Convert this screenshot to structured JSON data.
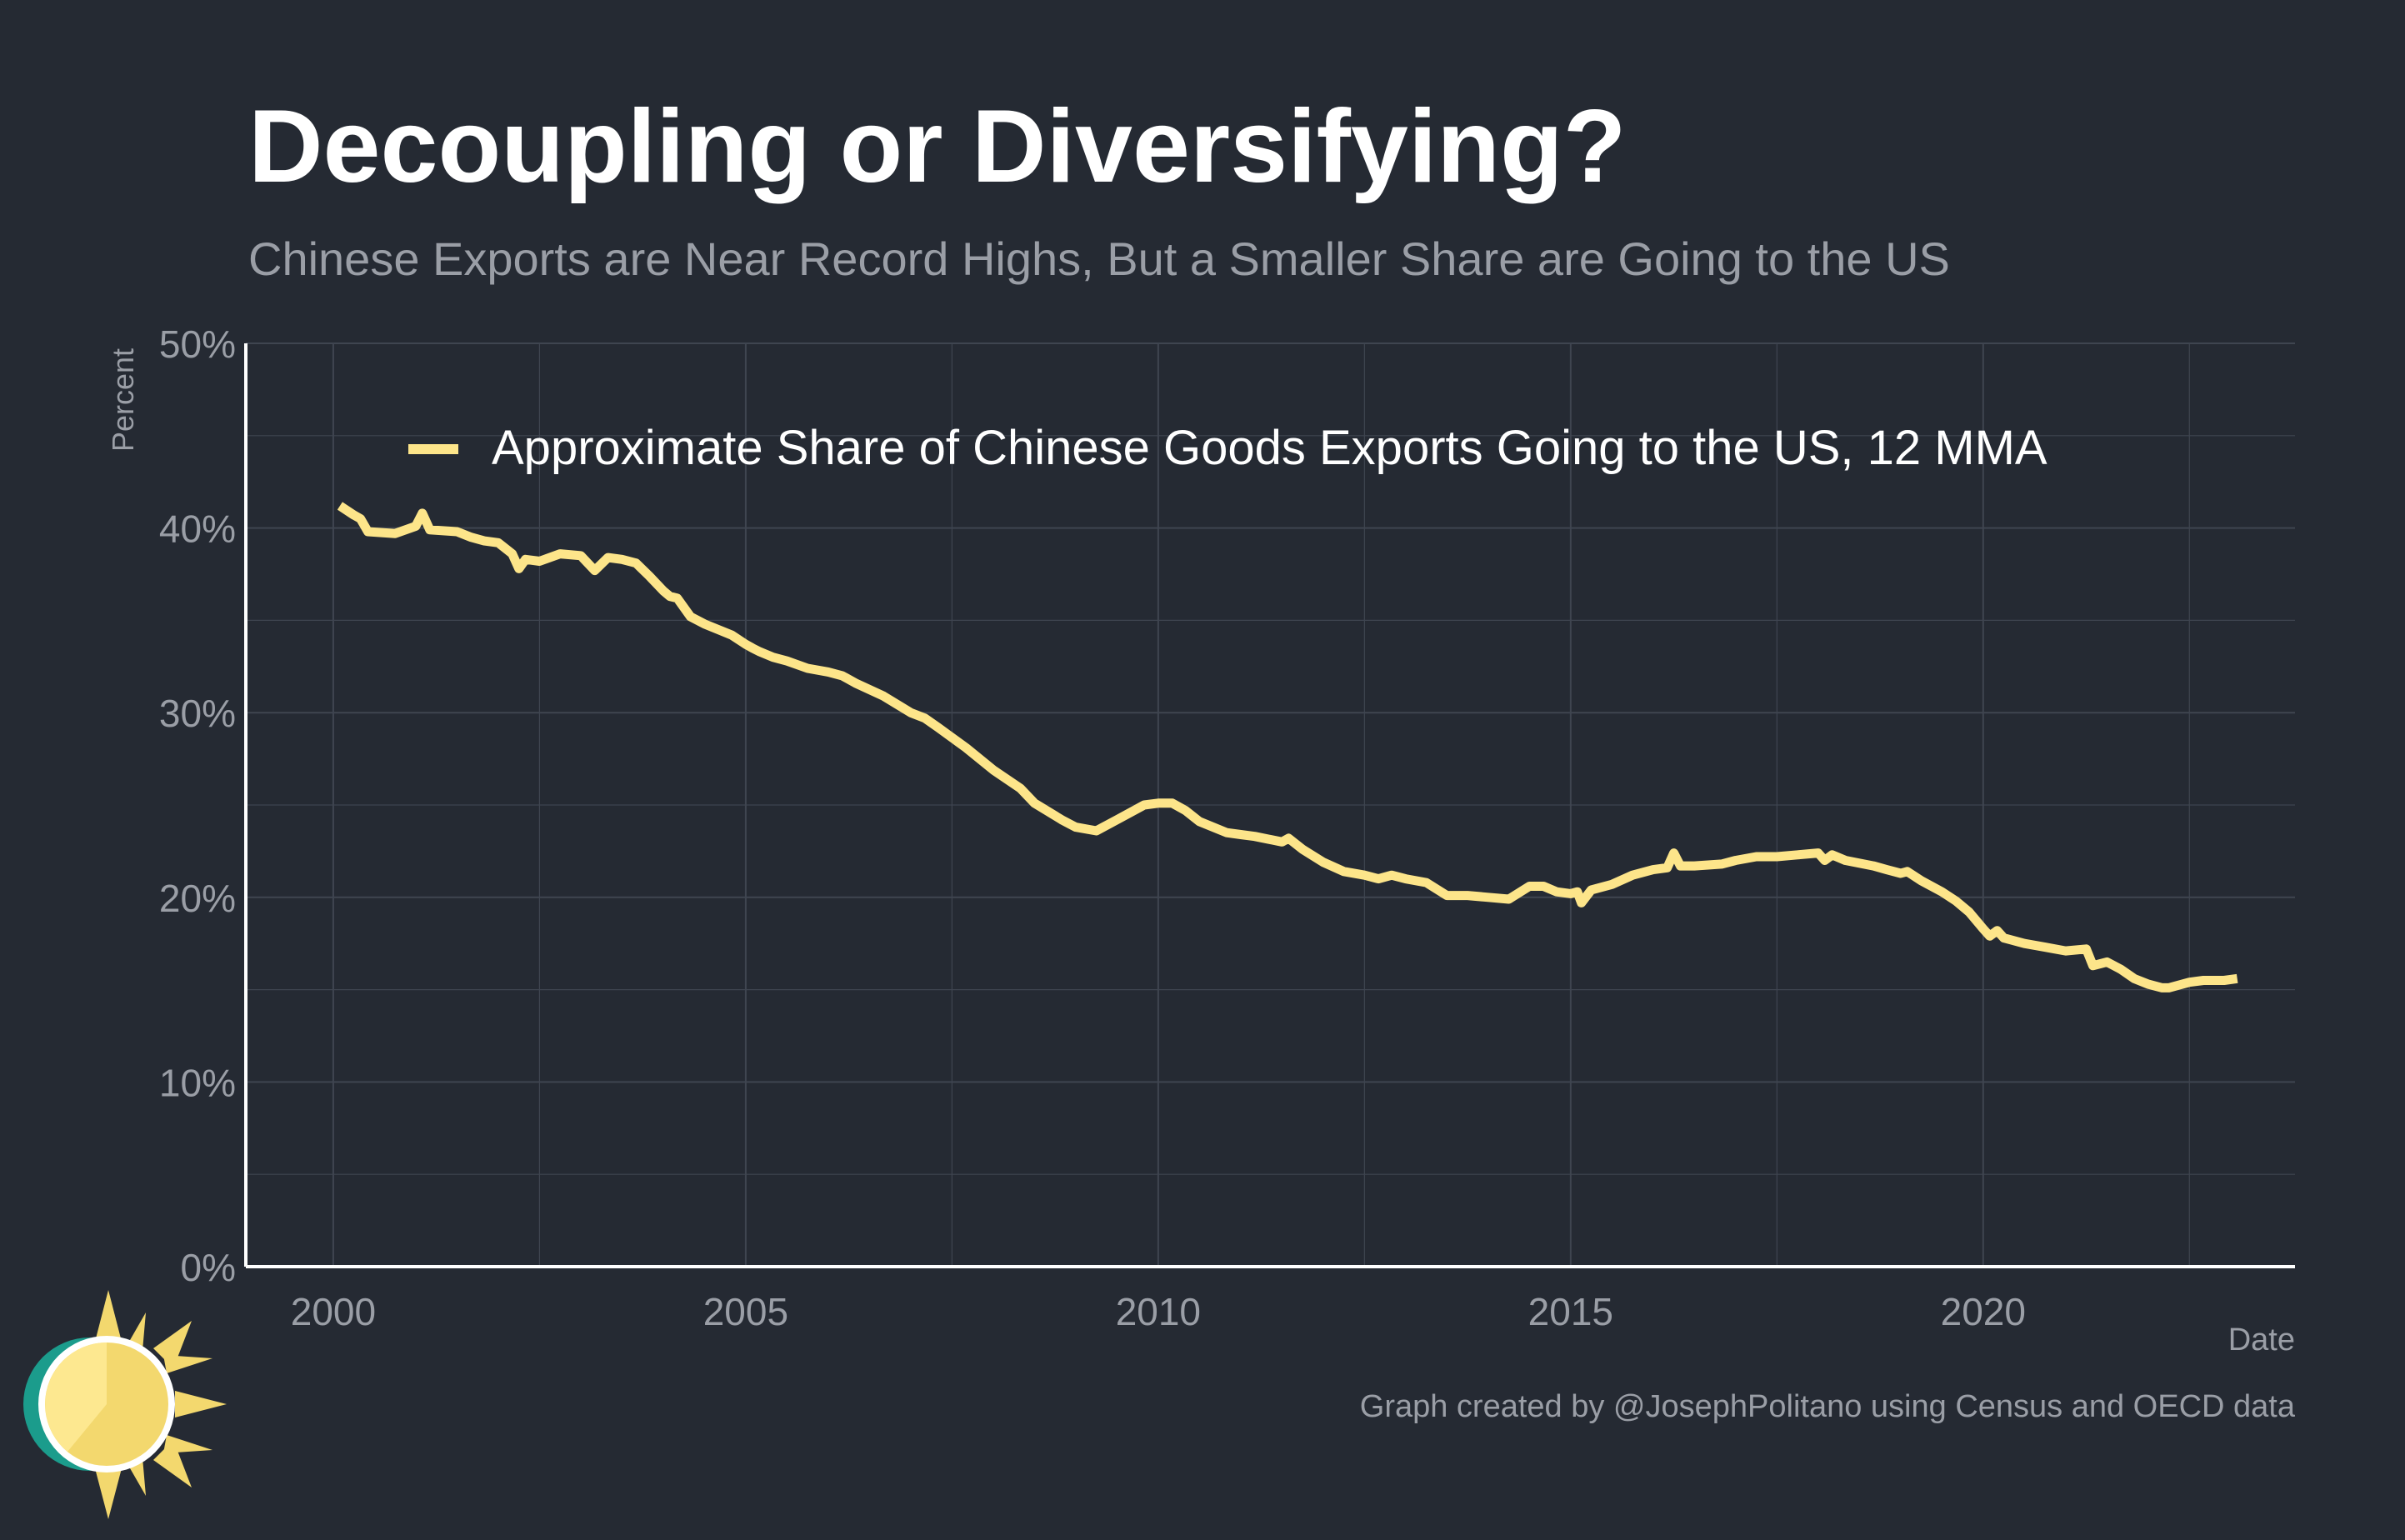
{
  "title": "Decoupling or Diversifying?",
  "subtitle": "Chinese Exports are Near Record Highs, But a Smaller Share are Going to the US",
  "caption": "Graph created by @JosephPolitano using Census and OECD data",
  "colors": {
    "background": "#252a33",
    "line": "#fde58a",
    "grid": "#3f4550",
    "axis": "#ffffff",
    "title": "#ffffff",
    "muted": "#9a9ea6"
  },
  "logo": {
    "name": "sun-logo-icon"
  },
  "chart_data": {
    "type": "line",
    "xlabel": "Date",
    "ylabel": "Percent",
    "xlim": [
      1998.94,
      2023.78
    ],
    "ylim": [
      0,
      50
    ],
    "x_ticks": [
      2000,
      2005,
      2010,
      2015,
      2020
    ],
    "x_tick_labels": [
      "2000",
      "2005",
      "2010",
      "2015",
      "2020"
    ],
    "y_ticks": [
      0,
      10,
      20,
      30,
      40,
      50
    ],
    "y_tick_labels": [
      "0%",
      "10%",
      "20%",
      "30%",
      "40%",
      "50%"
    ],
    "grid": true,
    "legend_position": "top",
    "series": [
      {
        "name": "Approximate Share of Chinese Goods Exports Going to the US, 12 MMA",
        "points": [
          [
            2000.08,
            41.2
          ],
          [
            2000.25,
            40.7
          ],
          [
            2000.33,
            40.5
          ],
          [
            2000.42,
            39.8
          ],
          [
            2000.75,
            39.7
          ],
          [
            2001.0,
            40.1
          ],
          [
            2001.08,
            40.8
          ],
          [
            2001.17,
            39.9
          ],
          [
            2001.5,
            39.8
          ],
          [
            2001.67,
            39.5
          ],
          [
            2001.83,
            39.3
          ],
          [
            2002.0,
            39.2
          ],
          [
            2002.17,
            38.6
          ],
          [
            2002.25,
            37.8
          ],
          [
            2002.33,
            38.3
          ],
          [
            2002.5,
            38.2
          ],
          [
            2002.75,
            38.6
          ],
          [
            2003.0,
            38.5
          ],
          [
            2003.17,
            37.7
          ],
          [
            2003.33,
            38.4
          ],
          [
            2003.5,
            38.3
          ],
          [
            2003.67,
            38.1
          ],
          [
            2003.83,
            37.4
          ],
          [
            2004.0,
            36.6
          ],
          [
            2004.08,
            36.3
          ],
          [
            2004.17,
            36.2
          ],
          [
            2004.33,
            35.2
          ],
          [
            2004.5,
            34.8
          ],
          [
            2004.83,
            34.2
          ],
          [
            2005.0,
            33.7
          ],
          [
            2005.08,
            33.5
          ],
          [
            2005.17,
            33.3
          ],
          [
            2005.33,
            33.0
          ],
          [
            2005.5,
            32.8
          ],
          [
            2005.75,
            32.4
          ],
          [
            2006.0,
            32.2
          ],
          [
            2006.17,
            32.0
          ],
          [
            2006.33,
            31.6
          ],
          [
            2006.67,
            30.9
          ],
          [
            2007.0,
            30.0
          ],
          [
            2007.17,
            29.7
          ],
          [
            2007.33,
            29.2
          ],
          [
            2007.67,
            28.1
          ],
          [
            2008.0,
            26.9
          ],
          [
            2008.33,
            25.9
          ],
          [
            2008.5,
            25.1
          ],
          [
            2008.83,
            24.2
          ],
          [
            2009.0,
            23.8
          ],
          [
            2009.25,
            23.6
          ],
          [
            2009.5,
            24.2
          ],
          [
            2009.83,
            25.0
          ],
          [
            2010.0,
            25.1
          ],
          [
            2010.17,
            25.1
          ],
          [
            2010.33,
            24.7
          ],
          [
            2010.5,
            24.1
          ],
          [
            2010.83,
            23.5
          ],
          [
            2011.0,
            23.4
          ],
          [
            2011.17,
            23.3
          ],
          [
            2011.5,
            23.0
          ],
          [
            2011.58,
            23.2
          ],
          [
            2011.75,
            22.6
          ],
          [
            2012.0,
            21.9
          ],
          [
            2012.25,
            21.4
          ],
          [
            2012.5,
            21.2
          ],
          [
            2012.67,
            21.0
          ],
          [
            2012.83,
            21.2
          ],
          [
            2013.0,
            21.0
          ],
          [
            2013.25,
            20.8
          ],
          [
            2013.5,
            20.1
          ],
          [
            2013.75,
            20.1
          ],
          [
            2014.0,
            20.0
          ],
          [
            2014.25,
            19.9
          ],
          [
            2014.5,
            20.6
          ],
          [
            2014.67,
            20.6
          ],
          [
            2014.83,
            20.3
          ],
          [
            2015.0,
            20.2
          ],
          [
            2015.08,
            20.3
          ],
          [
            2015.13,
            19.7
          ],
          [
            2015.25,
            20.4
          ],
          [
            2015.5,
            20.7
          ],
          [
            2015.75,
            21.2
          ],
          [
            2016.0,
            21.5
          ],
          [
            2016.17,
            21.6
          ],
          [
            2016.25,
            22.4
          ],
          [
            2016.33,
            21.7
          ],
          [
            2016.5,
            21.7
          ],
          [
            2016.83,
            21.8
          ],
          [
            2017.0,
            22.0
          ],
          [
            2017.25,
            22.2
          ],
          [
            2017.5,
            22.2
          ],
          [
            2017.75,
            22.3
          ],
          [
            2018.0,
            22.4
          ],
          [
            2018.08,
            22.0
          ],
          [
            2018.17,
            22.3
          ],
          [
            2018.33,
            22.0
          ],
          [
            2018.67,
            21.7
          ],
          [
            2018.83,
            21.5
          ],
          [
            2019.0,
            21.3
          ],
          [
            2019.08,
            21.4
          ],
          [
            2019.25,
            20.9
          ],
          [
            2019.5,
            20.3
          ],
          [
            2019.67,
            19.8
          ],
          [
            2019.83,
            19.2
          ],
          [
            2020.0,
            18.3
          ],
          [
            2020.08,
            17.9
          ],
          [
            2020.17,
            18.2
          ],
          [
            2020.25,
            17.8
          ],
          [
            2020.5,
            17.5
          ],
          [
            2020.75,
            17.3
          ],
          [
            2021.0,
            17.1
          ],
          [
            2021.25,
            17.2
          ],
          [
            2021.33,
            16.3
          ],
          [
            2021.5,
            16.5
          ],
          [
            2021.67,
            16.1
          ],
          [
            2021.83,
            15.6
          ],
          [
            2022.0,
            15.3
          ],
          [
            2022.17,
            15.1
          ],
          [
            2022.25,
            15.1
          ],
          [
            2022.5,
            15.4
          ],
          [
            2022.67,
            15.5
          ],
          [
            2022.92,
            15.5
          ],
          [
            2023.08,
            15.6
          ]
        ]
      }
    ]
  }
}
